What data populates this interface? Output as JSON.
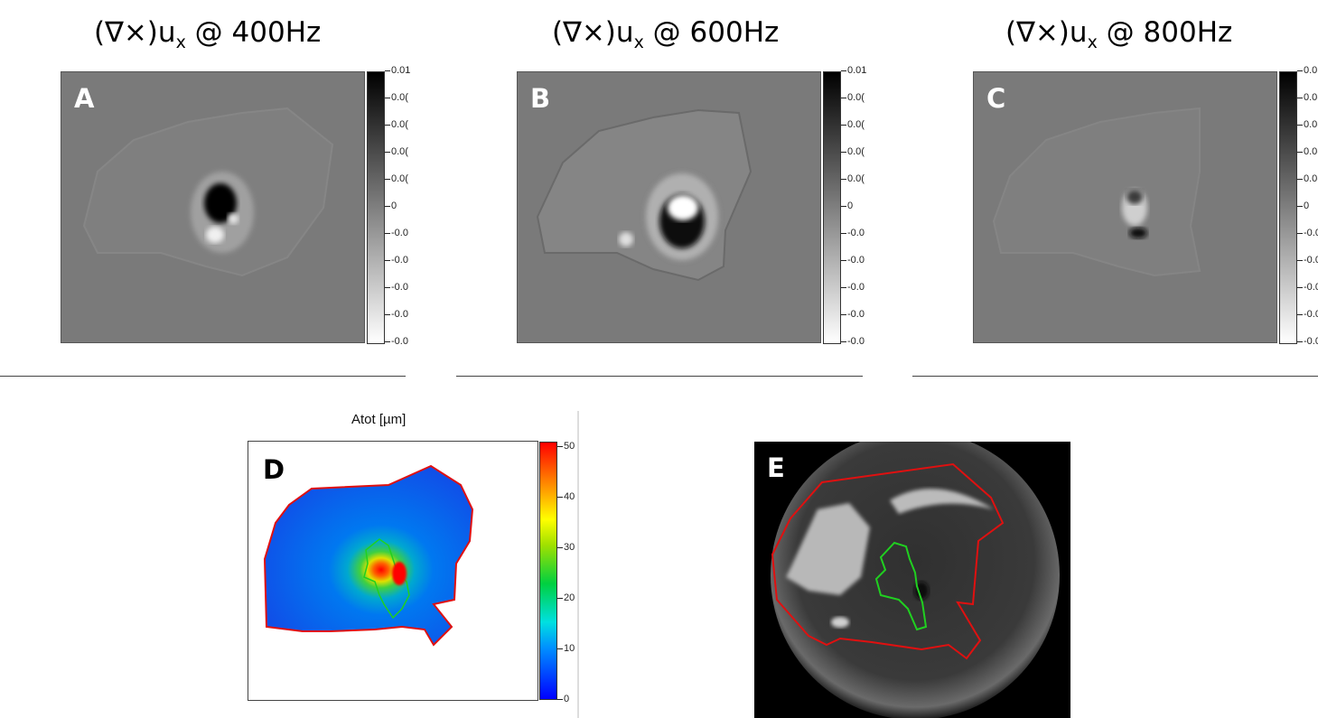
{
  "titles": {
    "a": {
      "prefix": "(∇×)u",
      "sub": "x",
      "suffix": " @ 400Hz"
    },
    "b": {
      "prefix": "(∇×)u",
      "sub": "x",
      "suffix": " @ 600Hz"
    },
    "c": {
      "prefix": "(∇×)u",
      "sub": "x",
      "suffix": " @ 800Hz"
    }
  },
  "panel_labels": {
    "a": "A",
    "b": "B",
    "c": "C",
    "d": "D",
    "e": "E"
  },
  "gray_colorbar_ticks": [
    "0.01",
    "0.0(",
    "0.0(",
    "0.0(",
    "0.0(",
    "0",
    "-0.0",
    "-0.0",
    "-0.0",
    "-0.0",
    "-0.0"
  ],
  "atot": {
    "title": "Atot [µm]",
    "colorbar_ticks": [
      "50",
      "40",
      "30",
      "20",
      "10",
      "0"
    ]
  },
  "colors": {
    "outline_red": "#e01010",
    "outline_green": "#20d020"
  }
}
